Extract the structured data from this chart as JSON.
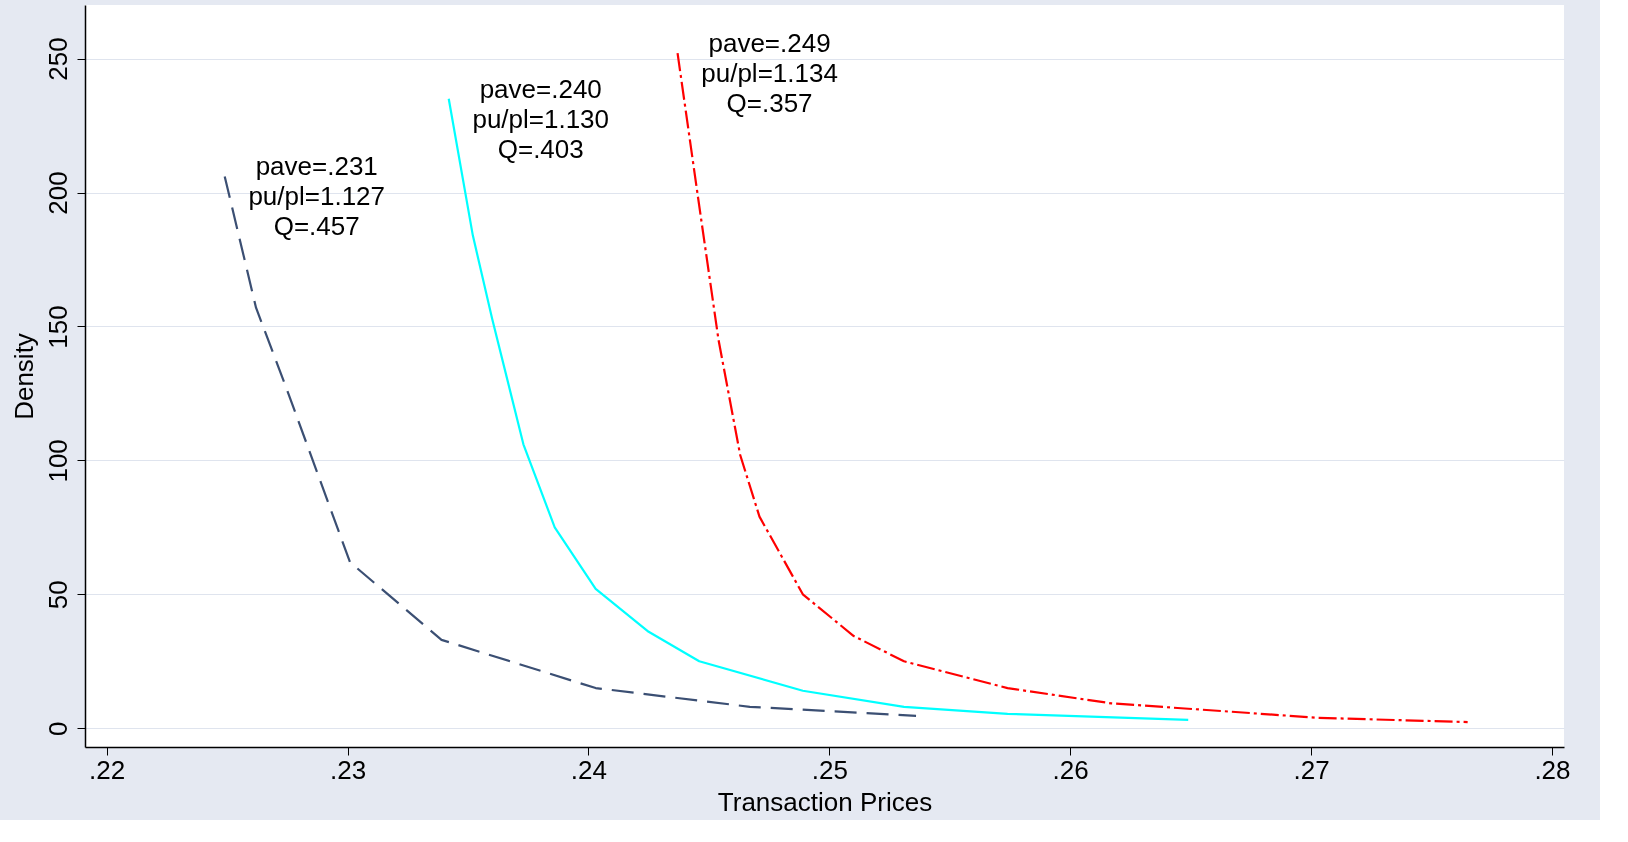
{
  "chart_data": {
    "type": "line",
    "xlabel": "Transaction Prices",
    "ylabel": "Density",
    "xlim": [
      0.2191,
      0.2805
    ],
    "ylim": [
      -7,
      270
    ],
    "xticks": [
      {
        "value": 0.22,
        "label": ".22"
      },
      {
        "value": 0.23,
        "label": ".23"
      },
      {
        "value": 0.24,
        "label": ".24"
      },
      {
        "value": 0.25,
        "label": ".25"
      },
      {
        "value": 0.26,
        "label": ".26"
      },
      {
        "value": 0.27,
        "label": ".27"
      },
      {
        "value": 0.28,
        "label": ".28"
      }
    ],
    "yticks": [
      0,
      50,
      100,
      150,
      200,
      250
    ],
    "grid": "y",
    "series": [
      {
        "color": "#3b4f73",
        "line_style": "dashed",
        "x": [
          0.2249,
          0.2262,
          0.2275,
          0.2301,
          0.2339,
          0.2403,
          0.2467,
          0.2536
        ],
        "values": [
          206,
          157,
          126,
          62,
          33,
          15,
          8,
          4.6
        ]
      },
      {
        "color": "#00ffff",
        "line_style": "solid",
        "x": [
          0.2342,
          0.2352,
          0.236,
          0.2373,
          0.2386,
          0.2403,
          0.2425,
          0.2446,
          0.2489,
          0.2531,
          0.2574,
          0.2649
        ],
        "values": [
          235,
          184,
          153,
          106,
          75,
          52,
          36,
          25,
          14,
          8,
          5.4,
          3.1
        ]
      },
      {
        "color": "#ff0000",
        "line_style": "dashdot",
        "x": [
          0.2437,
          0.2446,
          0.2454,
          0.2463,
          0.2471,
          0.2489,
          0.251,
          0.2531,
          0.2574,
          0.2617,
          0.2703,
          0.2765
        ],
        "values": [
          252,
          195,
          145,
          102,
          79,
          50,
          34.5,
          25,
          15,
          9.3,
          3.9,
          2.3
        ]
      }
    ],
    "annotations": [
      "pave=.231\npu/pl=1.127\nQ=.457",
      "pave=.240\npu/pl=1.130\nQ=.403",
      "pave=.249\npu/pl=1.134\nQ=.357"
    ]
  }
}
